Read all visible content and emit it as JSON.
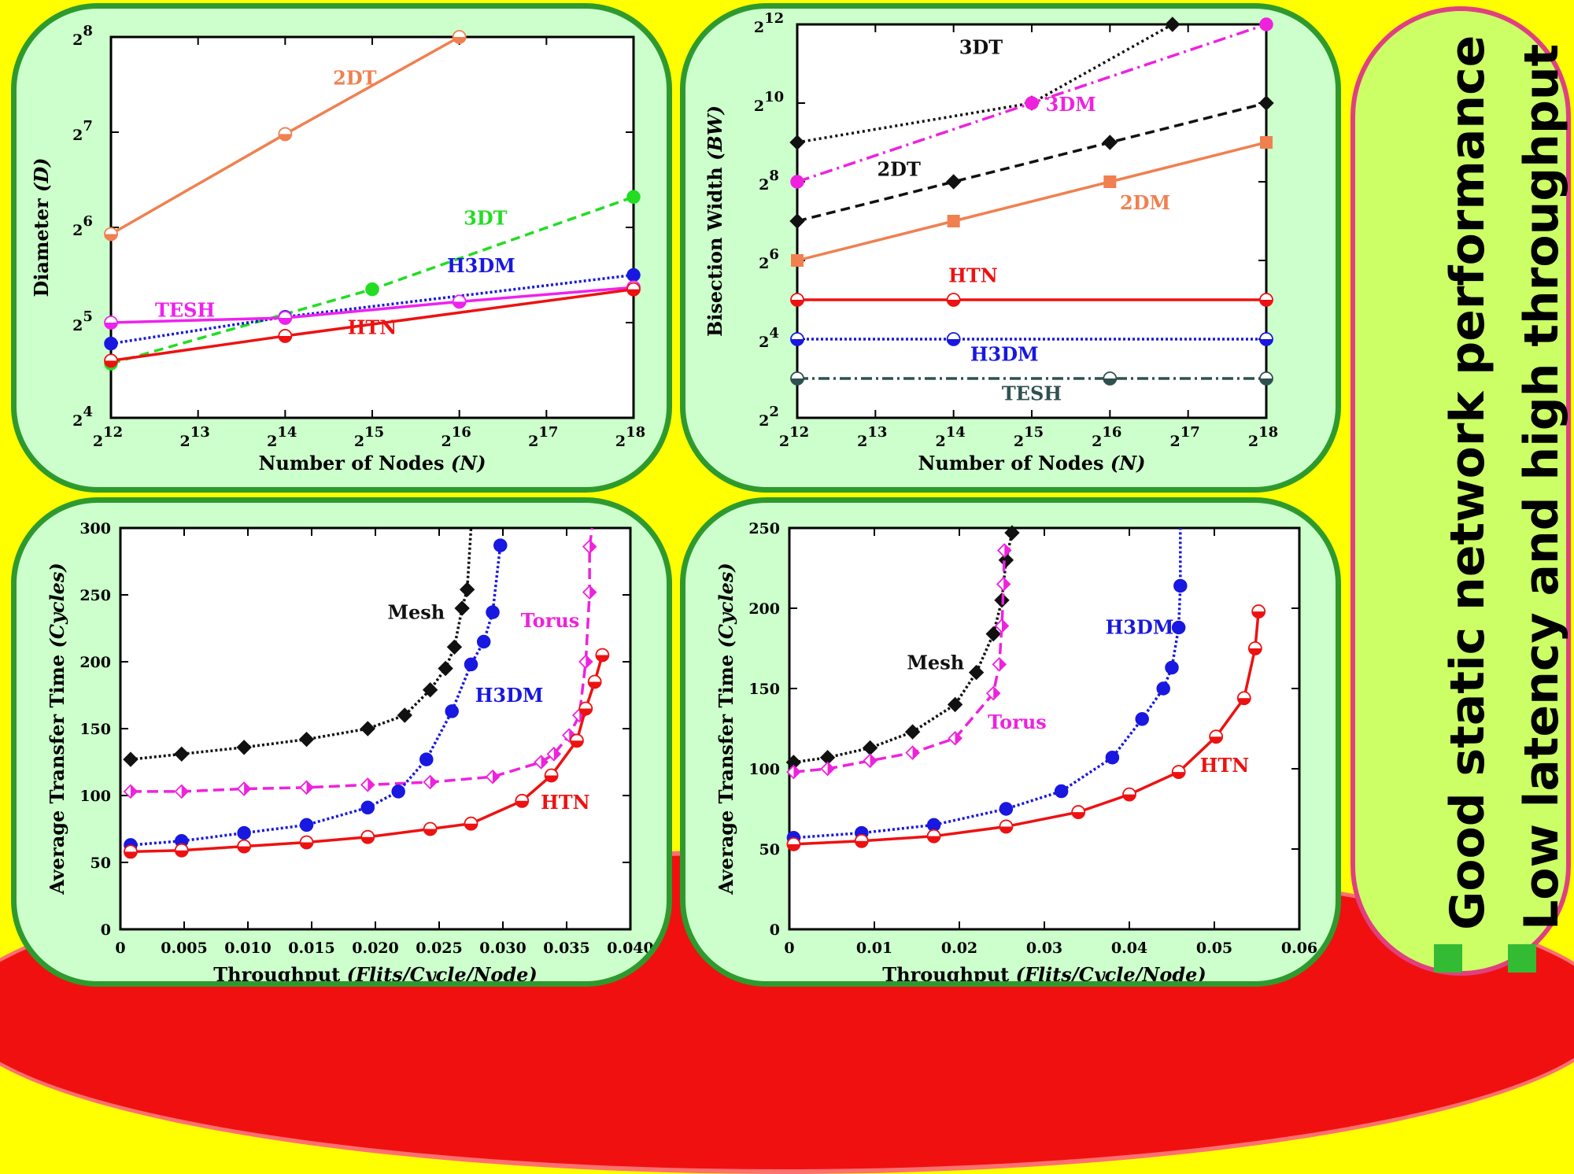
{
  "side": {
    "line1": "Good static network performance",
    "line2": "Low latency and high throughput"
  },
  "chart_data": [
    {
      "type": "line",
      "xscale": "log2",
      "yscale": "log2",
      "xlabel_main": "Number of Nodes ",
      "xlabel_unit": "(N)",
      "ylabel_main": "Diameter ",
      "ylabel_unit": "(D)",
      "xlim_exp": [
        12,
        18
      ],
      "ylim_exp": [
        4,
        8
      ],
      "x_ticks": [
        "12",
        "13",
        "14",
        "15",
        "16",
        "17",
        "18"
      ],
      "y_ticks": [
        "4",
        "5",
        "6",
        "7",
        "8"
      ],
      "series": [
        {
          "name": "2DT",
          "color": "#f08050",
          "dash": "",
          "marker": "circle-half",
          "x_exp": [
            12,
            14,
            16
          ],
          "y_exp": [
            5.93,
            6.98,
            8.0
          ]
        },
        {
          "name": "3DT",
          "color": "#22dd22",
          "dash": "12,7",
          "marker": "circle",
          "x_exp": [
            12,
            15,
            18
          ],
          "y_exp": [
            4.57,
            5.35,
            6.32
          ]
        },
        {
          "name": "H3DM",
          "color": "#1818e0",
          "dash": "3,3",
          "marker": "circle",
          "x_exp": [
            12,
            14,
            18
          ],
          "y_exp": [
            4.78,
            5.06,
            5.5
          ]
        },
        {
          "name": "TESH",
          "color": "#ee22ee",
          "dash": "",
          "marker": "circle-half",
          "x_exp": [
            12,
            14,
            16,
            18
          ],
          "y_exp": [
            5.0,
            5.05,
            5.22,
            5.37
          ]
        },
        {
          "name": "HTN",
          "color": "#ee1111",
          "dash": "",
          "marker": "circle-half",
          "x_exp": [
            12,
            14,
            18
          ],
          "y_exp": [
            4.6,
            4.86,
            5.35
          ]
        }
      ],
      "labels": [
        {
          "text": "2DT",
          "color": "#f08050",
          "x_exp": 14.8,
          "y_exp": 7.5
        },
        {
          "text": "3DT",
          "color": "#22dd22",
          "x_exp": 16.3,
          "y_exp": 6.03
        },
        {
          "text": "H3DM",
          "color": "#1818e0",
          "x_exp": 16.25,
          "y_exp": 5.53
        },
        {
          "text": "TESH",
          "color": "#ee22ee",
          "x_exp": 12.85,
          "y_exp": 5.06
        },
        {
          "text": "HTN",
          "color": "#ee1111",
          "x_exp": 15.0,
          "y_exp": 4.88
        }
      ]
    },
    {
      "type": "line",
      "xscale": "log2",
      "yscale": "log2",
      "xlabel_main": "Number of Nodes ",
      "xlabel_unit": "(N)",
      "ylabel_main": "Bisection Width ",
      "ylabel_unit": "(BW)",
      "xlim_exp": [
        12,
        18
      ],
      "ylim_exp": [
        2,
        12
      ],
      "x_ticks": [
        "12",
        "13",
        "14",
        "15",
        "16",
        "17",
        "18"
      ],
      "y_ticks": [
        "2",
        "4",
        "6",
        "8",
        "10",
        "12"
      ],
      "y_tick_exps": [
        2,
        4,
        6,
        8,
        10,
        12
      ],
      "series": [
        {
          "name": "3DT",
          "color": "#111111",
          "dash": "3,4",
          "marker": "diamond",
          "x_exp": [
            12,
            15,
            16.8
          ],
          "y_exp": [
            9.0,
            10.0,
            12.0
          ]
        },
        {
          "name": "3DM",
          "color": "#ee22dd",
          "dash": "16,6,3,6",
          "marker": "circle",
          "x_exp": [
            12,
            15,
            18
          ],
          "y_exp": [
            8.0,
            10.0,
            12.0
          ]
        },
        {
          "name": "2DT",
          "color": "#111111",
          "dash": "12,7",
          "marker": "diamond",
          "x_exp": [
            12,
            14,
            16,
            18
          ],
          "y_exp": [
            7.0,
            8.0,
            9.0,
            10.0
          ]
        },
        {
          "name": "2DM",
          "color": "#f08050",
          "dash": "",
          "marker": "square",
          "x_exp": [
            12,
            14,
            16,
            18
          ],
          "y_exp": [
            6.0,
            7.0,
            8.0,
            9.0
          ]
        },
        {
          "name": "HTN",
          "color": "#ee1111",
          "dash": "",
          "marker": "circle-half",
          "x_exp": [
            12,
            14,
            18
          ],
          "y_exp": [
            5.0,
            5.0,
            5.0
          ]
        },
        {
          "name": "H3DM",
          "color": "#1818e0",
          "dash": "3,3",
          "marker": "circle-half",
          "x_exp": [
            12,
            14,
            18
          ],
          "y_exp": [
            4.0,
            4.0,
            4.0
          ]
        },
        {
          "name": "TESH",
          "color": "#2f5050",
          "dash": "14,5,3,5",
          "marker": "circle-half",
          "x_exp": [
            12,
            16,
            18
          ],
          "y_exp": [
            3.0,
            3.0,
            3.0
          ]
        }
      ],
      "labels": [
        {
          "text": "3DT",
          "color": "#111111",
          "x_exp": 14.35,
          "y_exp": 11.25
        },
        {
          "text": "3DM",
          "color": "#ee22dd",
          "x_exp": 15.5,
          "y_exp": 9.8
        },
        {
          "text": "2DT",
          "color": "#111111",
          "x_exp": 13.3,
          "y_exp": 8.15
        },
        {
          "text": "2DM",
          "color": "#f08050",
          "x_exp": 16.45,
          "y_exp": 7.3
        },
        {
          "text": "HTN",
          "color": "#ee1111",
          "x_exp": 14.25,
          "y_exp": 5.45
        },
        {
          "text": "H3DM",
          "color": "#1818e0",
          "x_exp": 14.65,
          "y_exp": 3.45
        },
        {
          "text": "TESH",
          "color": "#2f5050",
          "x_exp": 15.0,
          "y_exp": 2.45
        }
      ]
    },
    {
      "type": "line",
      "xlabel_main": "Throughput ",
      "xlabel_unit": "(Flits/Cycle/Node)",
      "ylabel_main": "Average Transfer Time ",
      "ylabel_unit": "(Cycles)",
      "xlim": [
        0,
        0.04
      ],
      "ylim": [
        0,
        300
      ],
      "x_ticks": [
        0,
        0.005,
        0.01,
        0.015,
        0.02,
        0.025,
        0.03,
        0.035,
        0.04
      ],
      "x_tick_labels": [
        "0",
        "0.005",
        "0.010",
        "0.015",
        "0.020",
        "0.025",
        "0.030",
        "0.035",
        "0.040"
      ],
      "y_ticks": [
        0,
        50,
        100,
        150,
        200,
        250,
        300
      ],
      "y_tick_labels": [
        "0",
        "50",
        "100",
        "150",
        "200",
        "250",
        "300"
      ],
      "series": [
        {
          "name": "Mesh",
          "color": "#111111",
          "dash": "3,3",
          "marker": "diamond",
          "x": [
            0.0008,
            0.0048,
            0.0097,
            0.0146,
            0.0194,
            0.0223,
            0.0243,
            0.0255,
            0.0262,
            0.0268,
            0.0272,
            0.0275
          ],
          "y": [
            127,
            131,
            136,
            142,
            150,
            160,
            179,
            195,
            211,
            240,
            254,
            300
          ]
        },
        {
          "name": "Torus",
          "color": "#ee22dd",
          "dash": "14,7",
          "marker": "diamond-half",
          "x": [
            0.0008,
            0.0048,
            0.0097,
            0.0146,
            0.0194,
            0.0243,
            0.0292,
            0.033,
            0.034,
            0.0352,
            0.036,
            0.0365,
            0.0368,
            0.0368,
            0.037
          ],
          "y": [
            103,
            103,
            105,
            106,
            108,
            110,
            114,
            125,
            131,
            145,
            160,
            200,
            252,
            286,
            300
          ]
        },
        {
          "name": "H3DM",
          "color": "#1818e0",
          "dash": "3,3",
          "marker": "circle",
          "x": [
            0.0008,
            0.0048,
            0.0097,
            0.0146,
            0.0194,
            0.0218,
            0.024,
            0.026,
            0.0275,
            0.0285,
            0.0292,
            0.0298
          ],
          "y": [
            63,
            66,
            72,
            78,
            91,
            103,
            127,
            163,
            198,
            215,
            237,
            287
          ]
        },
        {
          "name": "HTN",
          "color": "#ee1111",
          "dash": "",
          "marker": "circle-half",
          "x": [
            0.0008,
            0.0048,
            0.0097,
            0.0146,
            0.0194,
            0.0243,
            0.0275,
            0.0315,
            0.0338,
            0.0358,
            0.0365,
            0.0372,
            0.0378
          ],
          "y": [
            58,
            59,
            62,
            65,
            69,
            75,
            79,
            96,
            115,
            141,
            165,
            185,
            205
          ]
        }
      ],
      "labels": [
        {
          "text": "Mesh",
          "color": "#111111",
          "x": 0.0232,
          "y": 232
        },
        {
          "text": "Torus",
          "color": "#ee22dd",
          "x": 0.0337,
          "y": 226
        },
        {
          "text": "H3DM",
          "color": "#1818e0",
          "x": 0.0305,
          "y": 170
        },
        {
          "text": "HTN",
          "color": "#ee1111",
          "x": 0.0349,
          "y": 90
        }
      ]
    },
    {
      "type": "line",
      "xlabel_main": "Throughput ",
      "xlabel_unit": "(Flits/Cycle/Node)",
      "ylabel_main": "Average Transfer Time ",
      "ylabel_unit": "(Cycles)",
      "xlim": [
        0,
        0.06
      ],
      "ylim": [
        0,
        250
      ],
      "x_ticks": [
        0,
        0.01,
        0.02,
        0.03,
        0.04,
        0.05,
        0.06
      ],
      "x_tick_labels": [
        "0",
        "0.01",
        "0.02",
        "0.03",
        "0.04",
        "0.05",
        "0.06"
      ],
      "y_ticks": [
        0,
        50,
        100,
        150,
        200,
        250
      ],
      "y_tick_labels": [
        "0",
        "50",
        "100",
        "150",
        "200",
        "250"
      ],
      "series": [
        {
          "name": "Mesh",
          "color": "#111111",
          "dash": "3,3",
          "marker": "diamond",
          "x": [
            0.0005,
            0.0045,
            0.0095,
            0.0145,
            0.0195,
            0.022,
            0.024,
            0.025,
            0.0255,
            0.0262
          ],
          "y": [
            104,
            107,
            113,
            123,
            140,
            160,
            184,
            205,
            230,
            247
          ]
        },
        {
          "name": "Torus",
          "color": "#ee22dd",
          "dash": "14,7",
          "marker": "diamond-half",
          "x": [
            0.0005,
            0.0045,
            0.0095,
            0.0145,
            0.0195,
            0.024,
            0.0247,
            0.025,
            0.0252,
            0.0253
          ],
          "y": [
            98,
            100,
            105,
            110,
            119,
            147,
            165,
            189,
            215,
            236
          ]
        },
        {
          "name": "H3DM",
          "color": "#1818e0",
          "dash": "3,3",
          "marker": "circle",
          "x": [
            0.0005,
            0.0085,
            0.017,
            0.0255,
            0.032,
            0.038,
            0.0415,
            0.044,
            0.045,
            0.0458,
            0.046,
            0.046
          ],
          "y": [
            57,
            60,
            65,
            75,
            86,
            107,
            131,
            150,
            163,
            188,
            214,
            250
          ]
        },
        {
          "name": "HTN",
          "color": "#ee1111",
          "dash": "",
          "marker": "circle-half",
          "x": [
            0.0005,
            0.0085,
            0.017,
            0.0255,
            0.034,
            0.04,
            0.0458,
            0.0502,
            0.0535,
            0.0548,
            0.0552
          ],
          "y": [
            53,
            55,
            58,
            64,
            73,
            84,
            98,
            120,
            144,
            175,
            198
          ]
        }
      ],
      "labels": [
        {
          "text": "Mesh",
          "color": "#111111",
          "x": 0.0172,
          "y": 162
        },
        {
          "text": "Torus",
          "color": "#ee22dd",
          "x": 0.0268,
          "y": 125
        },
        {
          "text": "H3DM",
          "color": "#1818e0",
          "x": 0.0412,
          "y": 184
        },
        {
          "text": "HTN",
          "color": "#ee1111",
          "x": 0.0512,
          "y": 98
        }
      ]
    }
  ]
}
